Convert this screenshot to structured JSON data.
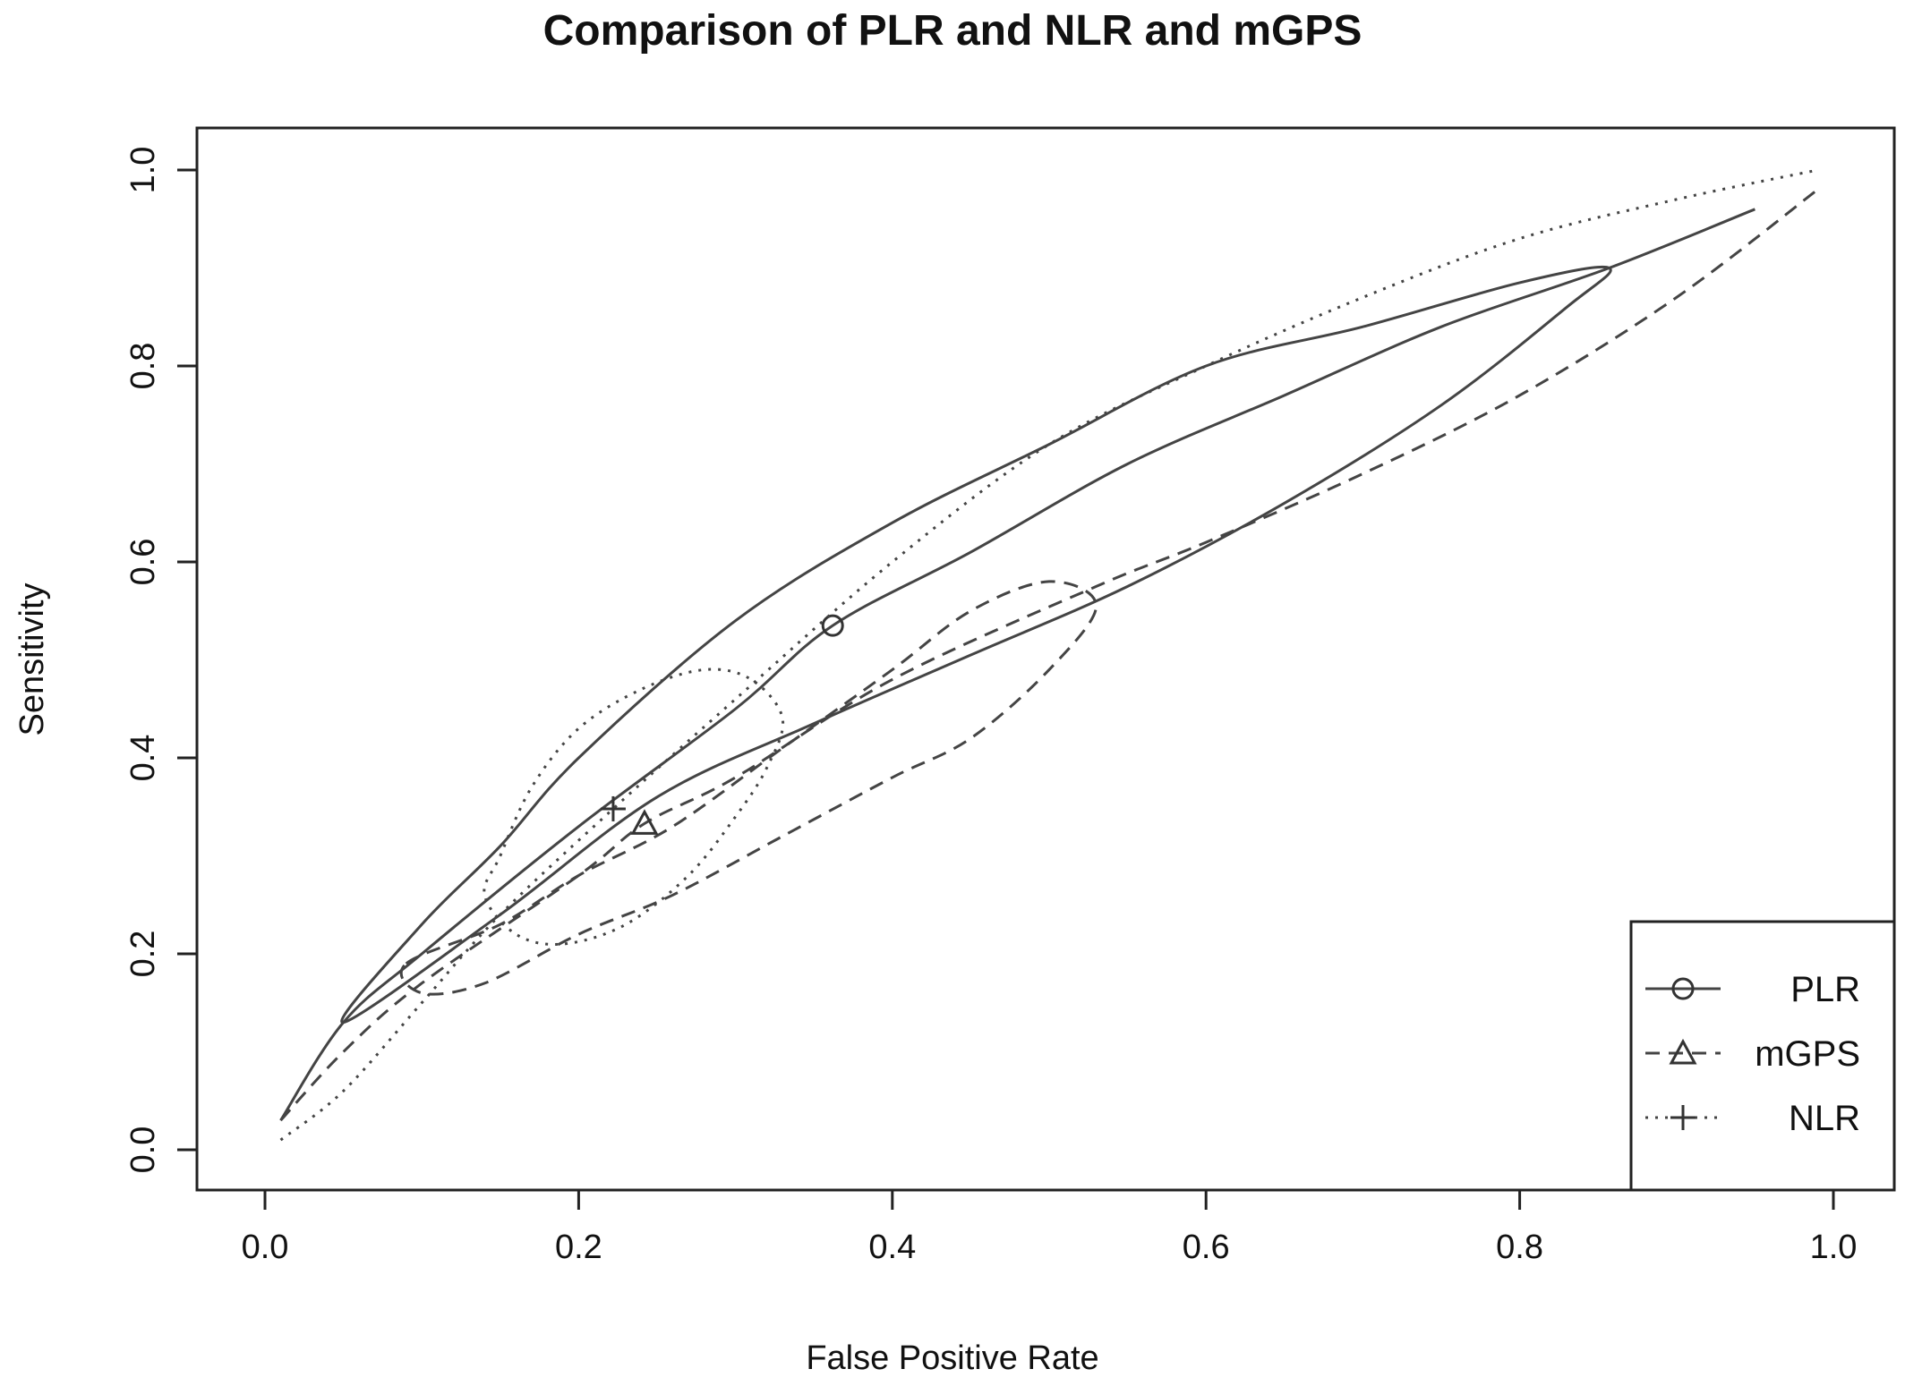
{
  "chart_data": {
    "type": "line",
    "title": "Comparison of PLR and NLR and mGPS",
    "xlabel": "False Positive Rate",
    "ylabel": "Sensitivity",
    "xlim": [
      0,
      1
    ],
    "ylim": [
      0,
      1
    ],
    "xticks": [
      "0.0",
      "0.2",
      "0.4",
      "0.6",
      "0.8",
      "1.0"
    ],
    "yticks": [
      "0.0",
      "0.2",
      "0.4",
      "0.6",
      "0.8",
      "1.0"
    ],
    "grid": false,
    "legend_position": "bottom-right",
    "series": [
      {
        "name": "PLR",
        "line_style": "solid",
        "marker": "circle",
        "summary_point": {
          "x": 0.362,
          "y": 0.535
        },
        "sroc_curve": [
          [
            0.01,
            0.03
          ],
          [
            0.05,
            0.13
          ],
          [
            0.1,
            0.2
          ],
          [
            0.2,
            0.33
          ],
          [
            0.3,
            0.45
          ],
          [
            0.362,
            0.535
          ],
          [
            0.45,
            0.61
          ],
          [
            0.55,
            0.7
          ],
          [
            0.65,
            0.77
          ],
          [
            0.75,
            0.84
          ],
          [
            0.857,
            0.9
          ],
          [
            0.95,
            0.96
          ]
        ],
        "confidence_region": [
          [
            0.05,
            0.13
          ],
          [
            0.1,
            0.23
          ],
          [
            0.15,
            0.31
          ],
          [
            0.2,
            0.4
          ],
          [
            0.3,
            0.54
          ],
          [
            0.4,
            0.64
          ],
          [
            0.5,
            0.72
          ],
          [
            0.6,
            0.8
          ],
          [
            0.7,
            0.84
          ],
          [
            0.8,
            0.885
          ],
          [
            0.857,
            0.9
          ],
          [
            0.83,
            0.86
          ],
          [
            0.75,
            0.76
          ],
          [
            0.65,
            0.66
          ],
          [
            0.55,
            0.575
          ],
          [
            0.45,
            0.505
          ],
          [
            0.35,
            0.435
          ],
          [
            0.25,
            0.36
          ],
          [
            0.15,
            0.24
          ],
          [
            0.05,
            0.13
          ]
        ]
      },
      {
        "name": "mGPS",
        "line_style": "dashed",
        "marker": "triangle",
        "summary_point": {
          "x": 0.242,
          "y": 0.333
        },
        "sroc_curve": [
          [
            0.01,
            0.03
          ],
          [
            0.05,
            0.1
          ],
          [
            0.1,
            0.17
          ],
          [
            0.2,
            0.28
          ],
          [
            0.242,
            0.333
          ],
          [
            0.3,
            0.38
          ],
          [
            0.4,
            0.48
          ],
          [
            0.53,
            0.575
          ],
          [
            0.6,
            0.62
          ],
          [
            0.7,
            0.69
          ],
          [
            0.8,
            0.77
          ],
          [
            0.9,
            0.87
          ],
          [
            0.99,
            0.98
          ]
        ],
        "confidence_region": [
          [
            0.09,
            0.19
          ],
          [
            0.15,
            0.23
          ],
          [
            0.2,
            0.28
          ],
          [
            0.26,
            0.33
          ],
          [
            0.33,
            0.41
          ],
          [
            0.4,
            0.49
          ],
          [
            0.45,
            0.55
          ],
          [
            0.5,
            0.58
          ],
          [
            0.53,
            0.555
          ],
          [
            0.5,
            0.49
          ],
          [
            0.45,
            0.42
          ],
          [
            0.4,
            0.38
          ],
          [
            0.33,
            0.32
          ],
          [
            0.26,
            0.26
          ],
          [
            0.2,
            0.22
          ],
          [
            0.14,
            0.17
          ],
          [
            0.1,
            0.16
          ],
          [
            0.09,
            0.19
          ]
        ]
      },
      {
        "name": "NLR",
        "line_style": "dotted",
        "marker": "plus",
        "summary_point": {
          "x": 0.222,
          "y": 0.348
        },
        "sroc_curve": [
          [
            0.01,
            0.01
          ],
          [
            0.05,
            0.06
          ],
          [
            0.1,
            0.15
          ],
          [
            0.15,
            0.24
          ],
          [
            0.222,
            0.348
          ],
          [
            0.3,
            0.46
          ],
          [
            0.4,
            0.6
          ],
          [
            0.5,
            0.72
          ],
          [
            0.6,
            0.8
          ],
          [
            0.7,
            0.87
          ],
          [
            0.8,
            0.93
          ],
          [
            0.9,
            0.97
          ],
          [
            0.99,
            1.0
          ]
        ],
        "confidence_region": [
          [
            0.15,
            0.3
          ],
          [
            0.17,
            0.37
          ],
          [
            0.2,
            0.43
          ],
          [
            0.24,
            0.47
          ],
          [
            0.28,
            0.49
          ],
          [
            0.31,
            0.48
          ],
          [
            0.33,
            0.44
          ],
          [
            0.32,
            0.39
          ],
          [
            0.3,
            0.34
          ],
          [
            0.27,
            0.28
          ],
          [
            0.23,
            0.23
          ],
          [
            0.19,
            0.21
          ],
          [
            0.16,
            0.22
          ],
          [
            0.14,
            0.26
          ],
          [
            0.15,
            0.3
          ]
        ]
      }
    ]
  }
}
